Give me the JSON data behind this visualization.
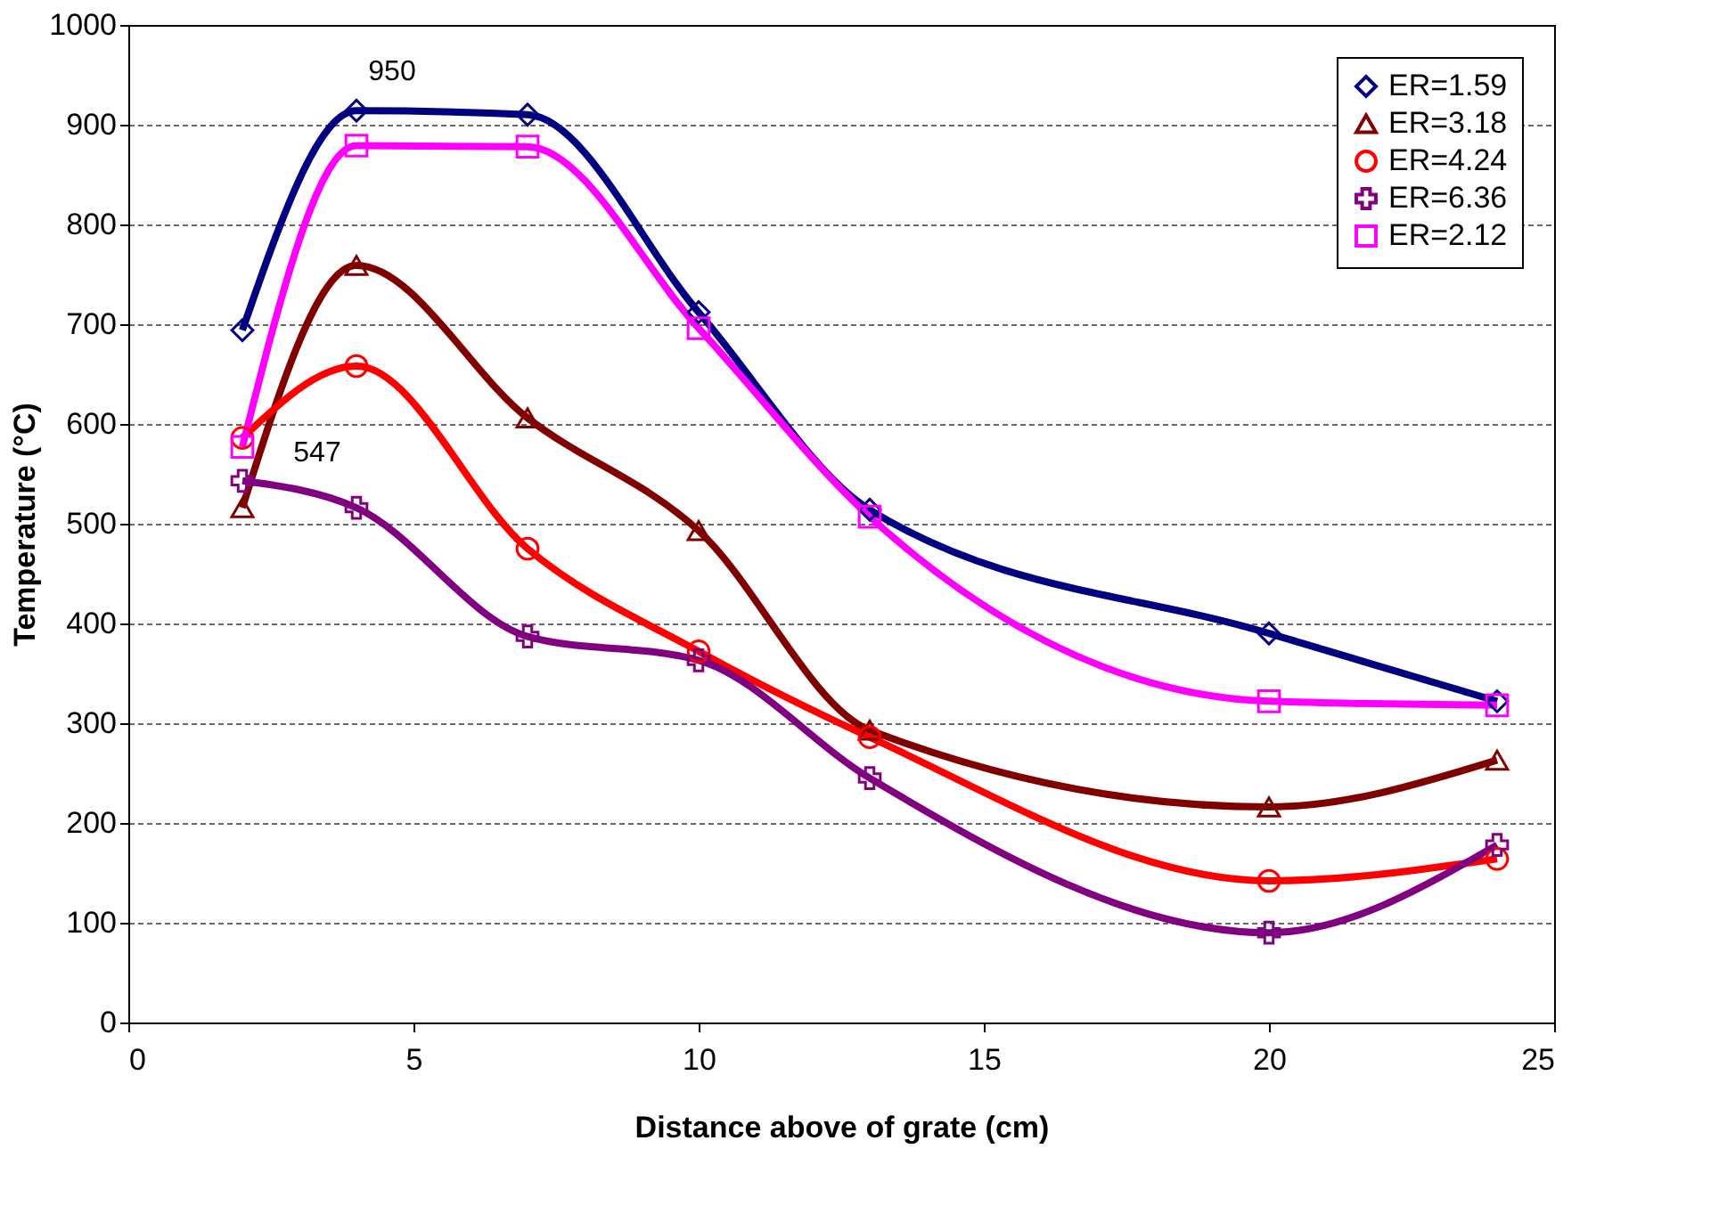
{
  "chart_data": {
    "type": "line",
    "xlabel": "Distance above of grate (cm)",
    "ylabel": "Temperature (°C)",
    "x": [
      2,
      4,
      7,
      10,
      13,
      20,
      24
    ],
    "series": [
      {
        "name": "ER=1.59",
        "color": "#000080",
        "marker": "diamond",
        "values": [
          694,
          914,
          910,
          712,
          514,
          390,
          322
        ]
      },
      {
        "name": "ER=3.18",
        "color": "#800000",
        "marker": "triangle",
        "values": [
          516,
          759,
          606,
          493,
          293,
          216,
          263
        ]
      },
      {
        "name": "ER=4.24",
        "color": "#ff0000",
        "marker": "circle",
        "values": [
          586,
          658,
          475,
          372,
          286,
          142,
          164
        ]
      },
      {
        "name": "ER=6.36",
        "color": "#800080",
        "marker": "cross",
        "values": [
          543,
          516,
          387,
          363,
          245,
          90,
          178
        ]
      },
      {
        "name": "ER=2.12",
        "color": "#ff00ff",
        "marker": "square",
        "values": [
          577,
          879,
          878,
          696,
          507,
          322,
          318
        ]
      }
    ],
    "annotations": [
      "950",
      "547"
    ],
    "xlim": [
      0,
      25
    ],
    "xticks": [
      0,
      5,
      10,
      15,
      20,
      25
    ],
    "ylim": [
      0,
      1000
    ],
    "yticks": [
      0,
      100,
      200,
      300,
      400,
      500,
      600,
      700,
      800,
      900,
      1000
    ],
    "grid": "y",
    "legend": "top right",
    "line_style": "solid"
  }
}
